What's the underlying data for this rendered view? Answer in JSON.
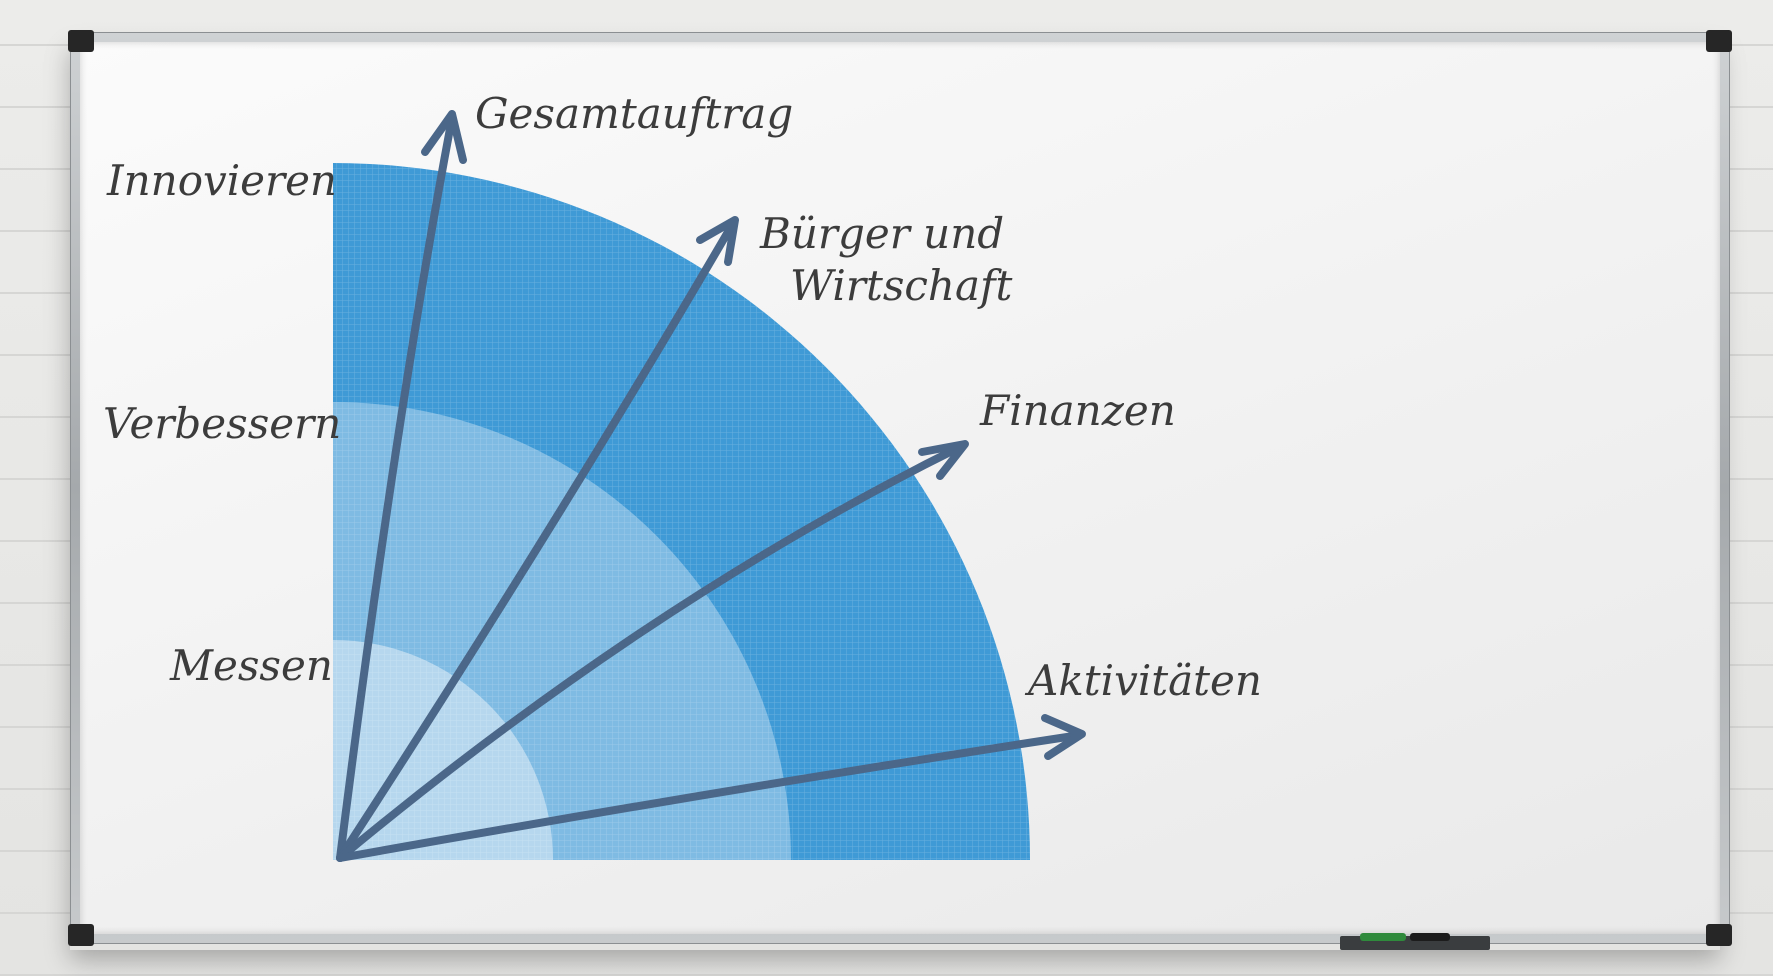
{
  "levels": [
    {
      "label": "Messen",
      "color": "#b6d7ee"
    },
    {
      "label": "Verbessern",
      "color": "#7fbbe3"
    },
    {
      "label": "Innovieren",
      "color": "#3f9ad6"
    }
  ],
  "axes": [
    {
      "label": "Gesamtauftrag"
    },
    {
      "label_line1": "Bürger und",
      "label_line2": "Wirtschaft"
    },
    {
      "label": "Finanzen"
    },
    {
      "label": "Aktivitäten"
    }
  ],
  "colors": {
    "arrow": "#4b6789",
    "text": "#3c3c3c"
  },
  "board": {
    "frame": "#b4b8bb",
    "surface": "#f4f4f4"
  }
}
